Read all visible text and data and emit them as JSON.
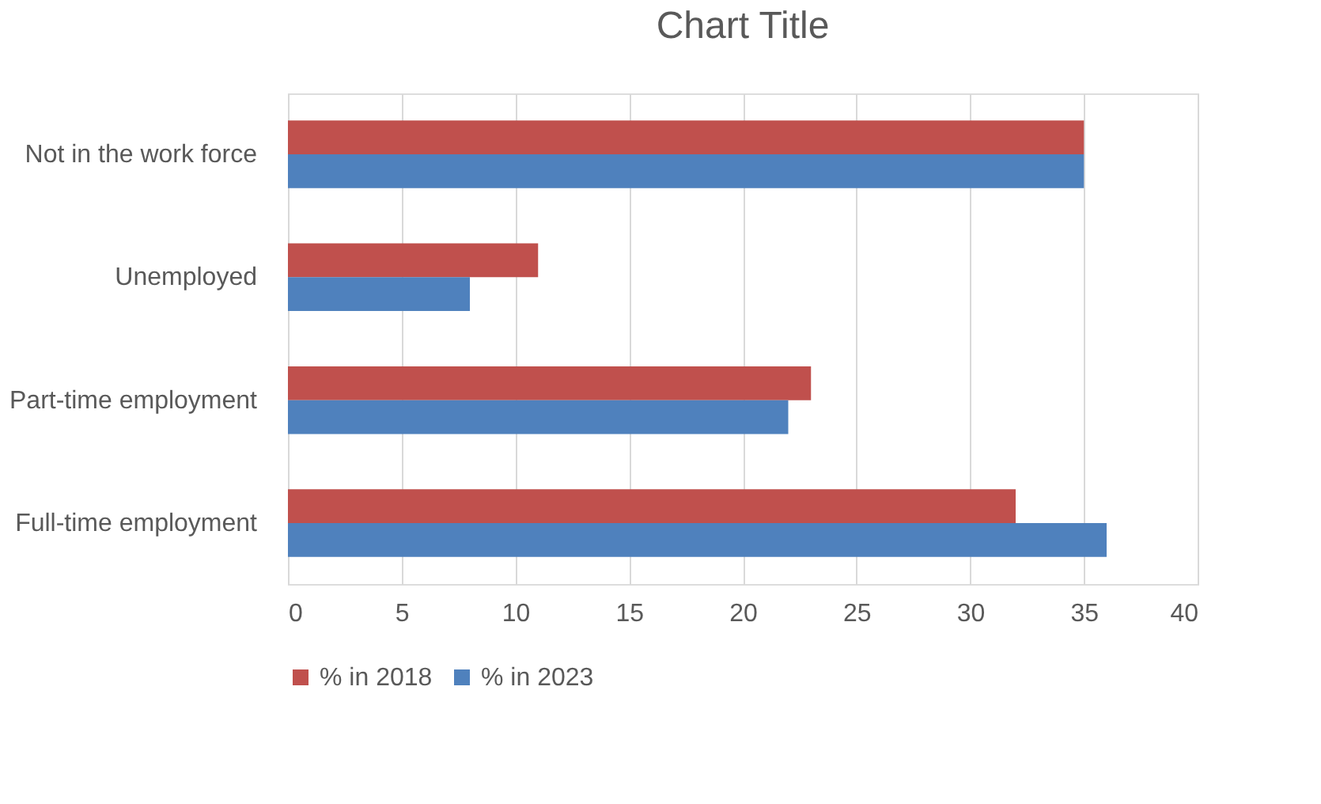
{
  "chart_data": {
    "type": "bar",
    "orientation": "horizontal",
    "title": "Chart Title",
    "categories": [
      "Not in the work force",
      "Unemployed",
      "Part-time employment",
      "Full-time employment"
    ],
    "series": [
      {
        "name": "% in 2018",
        "color": "#c0504d",
        "values": [
          35,
          11,
          23,
          32
        ]
      },
      {
        "name": "% in 2023",
        "color": "#4f81bd",
        "values": [
          35,
          8,
          22,
          36
        ]
      }
    ],
    "xlim": [
      0,
      40
    ],
    "xticks": [
      0,
      5,
      10,
      15,
      20,
      25,
      30,
      35,
      40
    ],
    "grid": "x",
    "legend": "bottom"
  }
}
